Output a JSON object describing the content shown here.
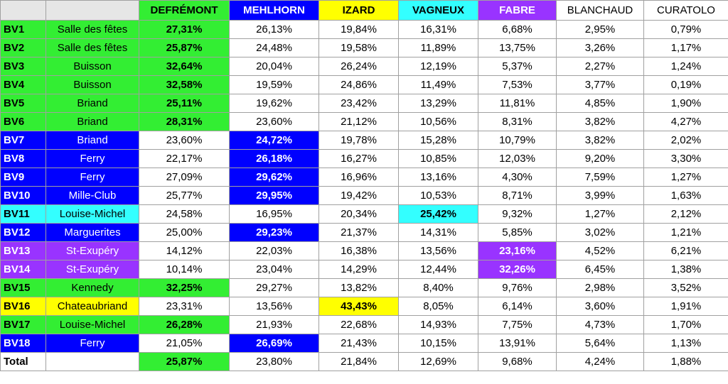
{
  "table": {
    "columns": [
      {
        "label": "DEFRÉMONT",
        "color": "#33ee33"
      },
      {
        "label": "MEHLHORN",
        "color": "#0000ff"
      },
      {
        "label": "IZARD",
        "color": "#ffff00"
      },
      {
        "label": "VAGNEUX",
        "color": "#33ffff"
      },
      {
        "label": "FABRE",
        "color": "#9933ff"
      },
      {
        "label": "BLANCHAUD",
        "color": "#ffffff"
      },
      {
        "label": "CURATOLO",
        "color": "#ffffff"
      }
    ],
    "rows": [
      {
        "bv": "BV1",
        "place": "Salle des fêtes",
        "values": [
          "27,31%",
          "26,13%",
          "19,84%",
          "16,31%",
          "6,68%",
          "2,95%",
          "0,79%"
        ]
      },
      {
        "bv": "BV2",
        "place": "Salle des fêtes",
        "values": [
          "25,87%",
          "24,48%",
          "19,58%",
          "11,89%",
          "13,75%",
          "3,26%",
          "1,17%"
        ]
      },
      {
        "bv": "BV3",
        "place": "Buisson",
        "values": [
          "32,64%",
          "20,04%",
          "26,24%",
          "12,19%",
          "5,37%",
          "2,27%",
          "1,24%"
        ]
      },
      {
        "bv": "BV4",
        "place": "Buisson",
        "values": [
          "32,58%",
          "19,59%",
          "24,86%",
          "11,49%",
          "7,53%",
          "3,77%",
          "0,19%"
        ]
      },
      {
        "bv": "BV5",
        "place": "Briand",
        "values": [
          "25,11%",
          "19,62%",
          "23,42%",
          "13,29%",
          "11,81%",
          "4,85%",
          "1,90%"
        ]
      },
      {
        "bv": "BV6",
        "place": "Briand",
        "values": [
          "28,31%",
          "23,60%",
          "21,12%",
          "10,56%",
          "8,31%",
          "3,82%",
          "4,27%"
        ]
      },
      {
        "bv": "BV7",
        "place": "Briand",
        "values": [
          "23,60%",
          "24,72%",
          "19,78%",
          "15,28%",
          "10,79%",
          "3,82%",
          "2,02%"
        ]
      },
      {
        "bv": "BV8",
        "place": "Ferry",
        "values": [
          "22,17%",
          "26,18%",
          "16,27%",
          "10,85%",
          "12,03%",
          "9,20%",
          "3,30%"
        ]
      },
      {
        "bv": "BV9",
        "place": "Ferry",
        "values": [
          "27,09%",
          "29,62%",
          "16,96%",
          "13,16%",
          "4,30%",
          "7,59%",
          "1,27%"
        ]
      },
      {
        "bv": "BV10",
        "place": "Mille-Club",
        "values": [
          "25,77%",
          "29,95%",
          "19,42%",
          "10,53%",
          "8,71%",
          "3,99%",
          "1,63%"
        ]
      },
      {
        "bv": "BV11",
        "place": "Louise-Michel",
        "values": [
          "24,58%",
          "16,95%",
          "20,34%",
          "25,42%",
          "9,32%",
          "1,27%",
          "2,12%"
        ]
      },
      {
        "bv": "BV12",
        "place": "Marguerites",
        "values": [
          "25,00%",
          "29,23%",
          "21,37%",
          "14,31%",
          "5,85%",
          "3,02%",
          "1,21%"
        ]
      },
      {
        "bv": "BV13",
        "place": "St-Exupéry",
        "values": [
          "14,12%",
          "22,03%",
          "16,38%",
          "13,56%",
          "23,16%",
          "4,52%",
          "6,21%"
        ]
      },
      {
        "bv": "BV14",
        "place": "St-Exupéry",
        "values": [
          "10,14%",
          "23,04%",
          "14,29%",
          "12,44%",
          "32,26%",
          "6,45%",
          "1,38%"
        ]
      },
      {
        "bv": "BV15",
        "place": "Kennedy",
        "values": [
          "32,25%",
          "29,27%",
          "13,82%",
          "8,40%",
          "9,76%",
          "2,98%",
          "3,52%"
        ]
      },
      {
        "bv": "BV16",
        "place": "Chateaubriand",
        "values": [
          "23,31%",
          "13,56%",
          "43,43%",
          "8,05%",
          "6,14%",
          "3,60%",
          "1,91%"
        ]
      },
      {
        "bv": "BV17",
        "place": "Louise-Michel",
        "values": [
          "26,28%",
          "21,93%",
          "22,68%",
          "14,93%",
          "7,75%",
          "4,73%",
          "1,70%"
        ]
      },
      {
        "bv": "BV18",
        "place": "Ferry",
        "values": [
          "21,05%",
          "26,69%",
          "21,43%",
          "10,15%",
          "13,91%",
          "5,64%",
          "1,13%"
        ]
      }
    ],
    "total": {
      "label": "Total",
      "values": [
        "25,87%",
        "23,80%",
        "21,84%",
        "12,69%",
        "9,68%",
        "4,24%",
        "1,88%"
      ]
    }
  }
}
